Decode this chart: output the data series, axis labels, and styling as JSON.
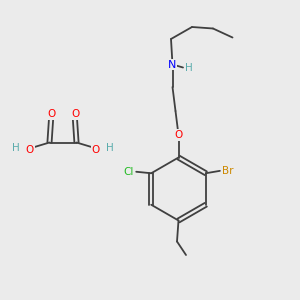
{
  "bg_color": "#ebebeb",
  "atom_colors": {
    "C": "#000000",
    "H": "#5aacac",
    "O": "#ff0000",
    "N": "#0000ff",
    "Br": "#cc8800",
    "Cl": "#22bb22"
  },
  "bond_color": "#404040",
  "bond_lw": 1.3
}
